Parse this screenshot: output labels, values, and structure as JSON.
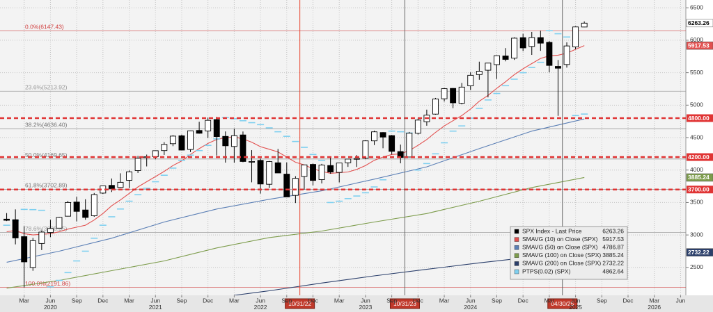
{
  "chart_data": {
    "type": "candlestick",
    "name": "SPX Index - Last Price",
    "color": "#000000",
    "up_color": "#ffffff",
    "down_color": "#000000",
    "dates": [
      "2020-01",
      "2020-02",
      "2020-03",
      "2020-04",
      "2020-05",
      "2020-06",
      "2020-07",
      "2020-08",
      "2020-09",
      "2020-10",
      "2020-11",
      "2020-12",
      "2021-01",
      "2021-02",
      "2021-03",
      "2021-04",
      "2021-05",
      "2021-06",
      "2021-07",
      "2021-08",
      "2021-09",
      "2021-10",
      "2021-11",
      "2021-12",
      "2022-01",
      "2022-02",
      "2022-03",
      "2022-04",
      "2022-05",
      "2022-06",
      "2022-07",
      "2022-08",
      "2022-09",
      "2022-10",
      "2022-11",
      "2022-12",
      "2023-01",
      "2023-02",
      "2023-03",
      "2023-04",
      "2023-05",
      "2023-06",
      "2023-07",
      "2023-08",
      "2023-09",
      "2023-10",
      "2023-11",
      "2023-12",
      "2024-01",
      "2024-02",
      "2024-03",
      "2024-04",
      "2024-05",
      "2024-06",
      "2024-07",
      "2024-08",
      "2024-09",
      "2024-10",
      "2024-11",
      "2024-12",
      "2025-01",
      "2025-02",
      "2025-03",
      "2025-04",
      "2025-05",
      "2025-06",
      "2025-07"
    ],
    "open": [
      3244,
      3235,
      2974,
      2499,
      2869,
      3038,
      3105,
      3289,
      3507,
      3385,
      3296,
      3645,
      3764,
      3732,
      3842,
      3992,
      4191,
      4207,
      4300,
      4406,
      4528,
      4317,
      4610,
      4602,
      4778,
      4519,
      4363,
      4541,
      4130,
      4149,
      3781,
      4112,
      3937,
      3610,
      3901,
      4087,
      3853,
      4070,
      3964,
      4112,
      4166,
      4183,
      4450,
      4578,
      4531,
      4285,
      4201,
      4567,
      4745,
      4862,
      5098,
      5258,
      5029,
      5297,
      5471,
      5538,
      5624,
      5758,
      5724,
      6040,
      5904,
      6041,
      5968,
      5597,
      5626,
      5897,
      6204
    ],
    "high": [
      3337,
      3394,
      3136,
      2955,
      3068,
      3233,
      3280,
      3525,
      3588,
      3550,
      3646,
      3760,
      3870,
      3950,
      3994,
      4218,
      4238,
      4302,
      4430,
      4537,
      4546,
      4608,
      4744,
      4808,
      4819,
      4595,
      4637,
      4594,
      4307,
      4178,
      4140,
      4325,
      4119,
      3905,
      4080,
      4101,
      4095,
      4195,
      4111,
      4170,
      4231,
      4458,
      4607,
      4584,
      4541,
      4393,
      4587,
      4794,
      4931,
      5111,
      5265,
      5264,
      5342,
      5506,
      5670,
      5651,
      5768,
      5879,
      6045,
      6100,
      6128,
      6147,
      5987,
      5696,
      5968,
      6215,
      6290
    ],
    "low": [
      3214,
      2855,
      2192,
      2448,
      2767,
      2966,
      3101,
      3284,
      3209,
      3234,
      3280,
      3633,
      3662,
      3725,
      3723,
      3955,
      4056,
      4165,
      4233,
      4368,
      4306,
      4278,
      4560,
      4495,
      4223,
      4115,
      4115,
      4121,
      3811,
      3637,
      3722,
      3955,
      3585,
      3492,
      3699,
      3764,
      3794,
      3943,
      3809,
      4049,
      4048,
      4166,
      4385,
      4336,
      4239,
      4104,
      4197,
      4547,
      4683,
      4853,
      5056,
      4954,
      5012,
      5234,
      5391,
      5120,
      5403,
      5675,
      5697,
      5833,
      5774,
      5837,
      5505,
      4835,
      5578,
      5861,
      6201
    ],
    "close": [
      3226,
      2954,
      2585,
      2912,
      3044,
      3100,
      3271,
      3500,
      3363,
      3270,
      3622,
      3756,
      3714,
      3811,
      3973,
      4181,
      4204,
      4298,
      4395,
      4523,
      4308,
      4605,
      4567,
      4766,
      4516,
      4374,
      4530,
      4132,
      4132,
      3785,
      4130,
      3955,
      3586,
      3872,
      4080,
      3840,
      4077,
      3970,
      4109,
      4169,
      4180,
      4450,
      4589,
      4508,
      4288,
      4194,
      4568,
      4770,
      4846,
      5096,
      5254,
      5036,
      5278,
      5460,
      5522,
      5648,
      5762,
      5705,
      6032,
      5882,
      6041,
      5955,
      5612,
      5569,
      5912,
      6205,
      6263.26
    ],
    "lines": [
      {
        "name": "SMAVG (10)  on Close (SPX)",
        "color": "#e2504f",
        "values": [
          3050,
          3070,
          3020,
          3000,
          3010,
          3020,
          3050,
          3090,
          3120,
          3150,
          3230,
          3330,
          3450,
          3540,
          3640,
          3740,
          3820,
          3900,
          3980,
          4070,
          4140,
          4240,
          4330,
          4410,
          4470,
          4500,
          4510,
          4480,
          4430,
          4360,
          4320,
          4280,
          4200,
          4120,
          4080,
          4020,
          3980,
          3950,
          3960,
          3970,
          4010,
          4070,
          4150,
          4200,
          4240,
          4250,
          4300,
          4380,
          4470,
          4580,
          4680,
          4760,
          4840,
          4940,
          5060,
          5150,
          5260,
          5360,
          5470,
          5560,
          5640,
          5720,
          5760,
          5770,
          5800,
          5860,
          5917.53
        ]
      },
      {
        "name": "SMAVG (50)  on Close (SPX)",
        "color": "#5b7fb5",
        "x": [
          "2020-01",
          "2020-07",
          "2021-01",
          "2021-07",
          "2022-01",
          "2022-07",
          "2023-01",
          "2023-07",
          "2024-01",
          "2024-07",
          "2025-01",
          "2025-07"
        ],
        "values": [
          2580,
          2750,
          2950,
          3200,
          3400,
          3550,
          3680,
          3860,
          4050,
          4330,
          4600,
          4786.87
        ]
      },
      {
        "name": "SMAVG (100)  on Close (SPX)",
        "color": "#7d9c4c",
        "x": [
          "2020-01",
          "2020-07",
          "2021-01",
          "2021-07",
          "2022-01",
          "2022-07",
          "2023-01",
          "2023-07",
          "2024-01",
          "2024-07",
          "2025-01",
          "2025-07"
        ],
        "values": [
          2180,
          2300,
          2450,
          2600,
          2800,
          2960,
          3060,
          3200,
          3330,
          3520,
          3730,
          3885.24
        ]
      },
      {
        "name": "SMAVG (200)  on Close (SPX)",
        "color": "#2b3f6b",
        "x": [
          "2022-03",
          "2022-07",
          "2023-01",
          "2023-07",
          "2024-01",
          "2024-07",
          "2025-01",
          "2025-07"
        ],
        "values": [
          2070,
          2140,
          2260,
          2370,
          2470,
          2570,
          2660,
          2732.22
        ]
      }
    ],
    "sar": {
      "name": "PTPS(0.02) (SPX)",
      "color": "#7fd0f0",
      "values": [
        3150,
        3220,
        3394,
        3390,
        3380,
        2200,
        2300,
        2420,
        2600,
        2750,
        2950,
        3150,
        3280,
        3400,
        3520,
        3620,
        3720,
        3820,
        3920,
        4030,
        4150,
        4230,
        4300,
        4380,
        4480,
        4808,
        4790,
        4760,
        4730,
        4700,
        4650,
        4590,
        4520,
        4440,
        4350,
        4240,
        4150,
        3500,
        3520,
        3560,
        3600,
        3650,
        3740,
        3850,
        4600,
        4590,
        4570,
        4000,
        4100,
        4250,
        4420,
        4600,
        4680,
        4800,
        4950,
        5080,
        5180,
        5300,
        5400,
        5500,
        5580,
        5660,
        6147,
        6100,
        6050,
        4840,
        4862.64
      ]
    },
    "fib": [
      {
        "value": 6147.43,
        "label": "0.0%(6147.43)",
        "color": "#d04040"
      },
      {
        "value": 5213.92,
        "label": "23.6%(5213.92)",
        "color": "#999999"
      },
      {
        "value": 4636.4,
        "label": "38.2%(4636.40)",
        "color": "#777777"
      },
      {
        "value": 4169.65,
        "label": "50.0%(4169.65)",
        "color": "#777777"
      },
      {
        "value": 3702.89,
        "label": "61.8%(3702.89)",
        "color": "#777777"
      },
      {
        "value": 3038.35,
        "label": "78.6%(3038.35)",
        "color": "#999999"
      },
      {
        "value": 2191.86,
        "label": "100.0%(2191.86)",
        "color": "#d04040"
      }
    ],
    "levels": [
      {
        "value": 4800,
        "label": "4800.00"
      },
      {
        "value": 4200,
        "label": "4200.00"
      },
      {
        "value": 3700,
        "label": "3700.00"
      }
    ],
    "level_color": "#e03434",
    "markers": [
      {
        "date": "2022-10-31",
        "label": "10/31/22",
        "color": "#e8412c"
      },
      {
        "date": "2023-10-31",
        "label": "10/31/23",
        "color": "#666666"
      },
      {
        "date": "2025-04-30",
        "label": "04/30/25",
        "color": "#666666"
      }
    ],
    "ylim": [
      2070,
      6620
    ],
    "yticks": [
      2500,
      3000,
      3500,
      4000,
      4500,
      5000,
      5500,
      6000,
      6500
    ],
    "xlim": [
      "2019-12",
      "2026-07"
    ],
    "xticks": [
      {
        "value": "2020-03",
        "label": "Mar"
      },
      {
        "value": "2020-06",
        "label": "Jun"
      },
      {
        "value": "2020-09",
        "label": "Sep"
      },
      {
        "value": "2020-12",
        "label": "Dec"
      },
      {
        "value": "2021-03",
        "label": "Mar"
      },
      {
        "value": "2021-06",
        "label": "Jun"
      },
      {
        "value": "2021-09",
        "label": "Sep"
      },
      {
        "value": "2021-12",
        "label": "Dec"
      },
      {
        "value": "2022-03",
        "label": "Mar"
      },
      {
        "value": "2022-06",
        "label": "Jun"
      },
      {
        "value": "2022-09",
        "label": "Sep"
      },
      {
        "value": "2022-12",
        "label": "Dec"
      },
      {
        "value": "2023-03",
        "label": "Mar"
      },
      {
        "value": "2023-06",
        "label": "Jun"
      },
      {
        "value": "2023-09",
        "label": "Sep"
      },
      {
        "value": "2023-12",
        "label": "Dec"
      },
      {
        "value": "2024-03",
        "label": "Mar"
      },
      {
        "value": "2024-06",
        "label": "Jun"
      },
      {
        "value": "2024-09",
        "label": "Sep"
      },
      {
        "value": "2024-12",
        "label": "Dec"
      },
      {
        "value": "2025-03",
        "label": "Mar"
      },
      {
        "value": "2025-06",
        "label": "Jun"
      },
      {
        "value": "2025-09",
        "label": "Sep"
      },
      {
        "value": "2025-12",
        "label": "Dec"
      },
      {
        "value": "2026-03",
        "label": "Mar"
      },
      {
        "value": "2026-06",
        "label": "Jun"
      }
    ],
    "year_labels": [
      {
        "value": "2020-06",
        "label": "2020"
      },
      {
        "value": "2021-06",
        "label": "2021"
      },
      {
        "value": "2022-06",
        "label": "2022"
      },
      {
        "value": "2023-06",
        "label": "2023"
      },
      {
        "value": "2024-06",
        "label": "2024"
      },
      {
        "value": "2025-06",
        "label": "2025"
      },
      {
        "value": "2026-03",
        "label": "2026"
      }
    ],
    "grid": true
  }
}
